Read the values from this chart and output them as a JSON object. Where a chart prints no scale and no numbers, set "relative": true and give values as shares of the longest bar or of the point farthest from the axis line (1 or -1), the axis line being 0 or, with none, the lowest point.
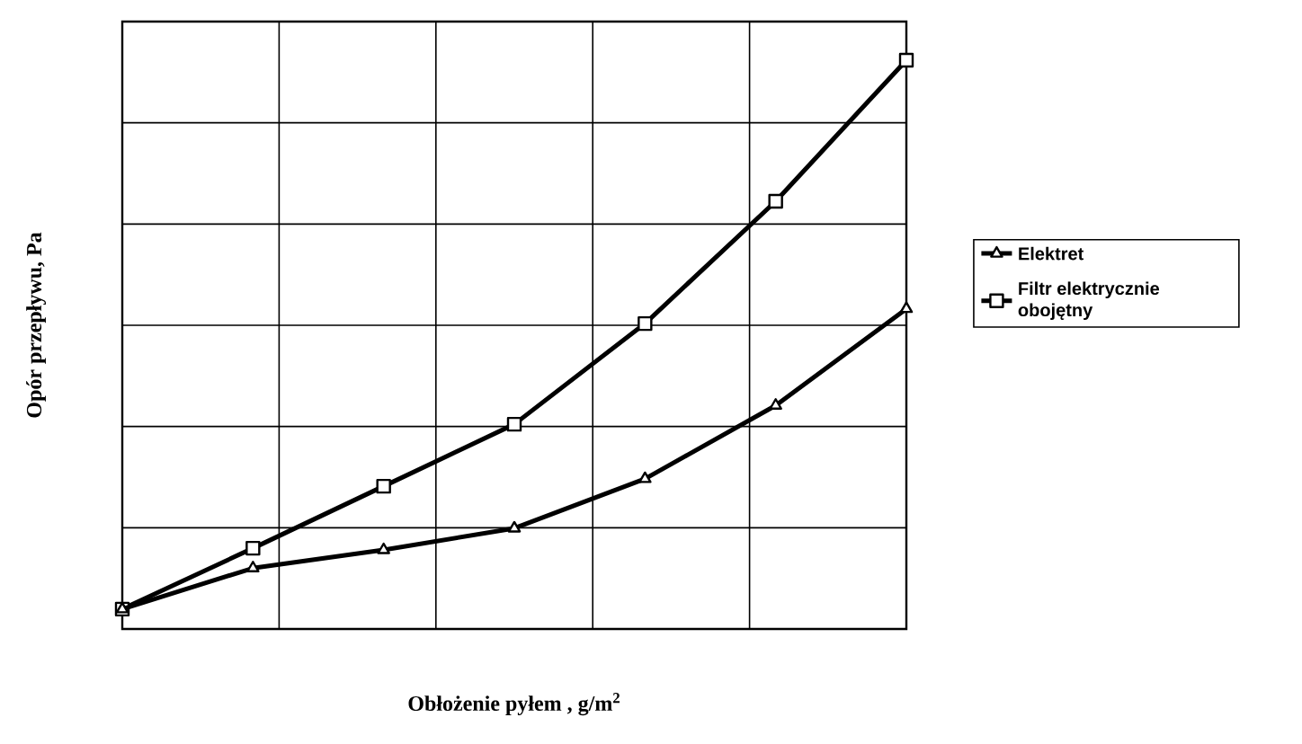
{
  "chart_data": {
    "type": "line",
    "xlabel": "Obłożenie pyłem , g/m$^{2}$",
    "ylabel": "Opór przepływu, Pa",
    "categories": [
      null,
      null,
      null,
      null,
      null,
      null,
      null
    ],
    "relative": true,
    "grid": true,
    "legend": "right",
    "series": [
      {
        "name": "Elektret",
        "color": "#000000",
        "marker": "triangle",
        "values": [
          0.035,
          0.107,
          0.139,
          0.177,
          0.264,
          0.393,
          0.563
        ]
      },
      {
        "name": "Filtr elektrycznie obojętny",
        "color": "#000000",
        "marker": "square",
        "values": [
          0.035,
          0.142,
          0.251,
          0.36,
          0.537,
          0.752,
          1
        ]
      }
    ]
  }
}
